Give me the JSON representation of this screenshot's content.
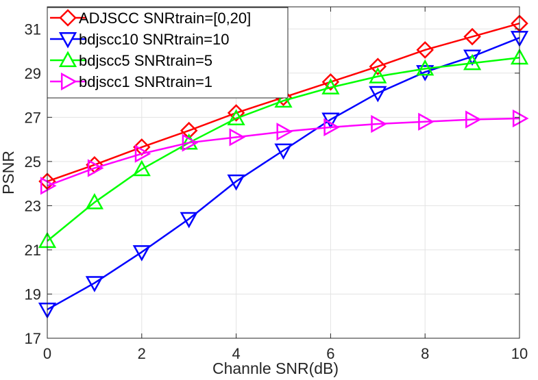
{
  "chart_data": {
    "type": "line",
    "title": "",
    "xlabel": "Channle SNR(dB)",
    "ylabel": "PSNR",
    "xlim": [
      0,
      10
    ],
    "ylim": [
      17,
      32
    ],
    "xticks": [
      0,
      2,
      4,
      6,
      8,
      10
    ],
    "yticks": [
      17,
      19,
      21,
      23,
      25,
      27,
      29,
      31
    ],
    "grid": true,
    "legend_position": "top-left",
    "x": [
      0,
      1,
      2,
      3,
      4,
      5,
      6,
      7,
      8,
      9,
      10
    ],
    "series": [
      {
        "name": "ADJSCC SNRtrain=[0,20]",
        "color": "#ff0000",
        "marker": "diamond",
        "values": [
          24.1,
          24.85,
          25.65,
          26.4,
          27.2,
          27.9,
          28.6,
          29.3,
          30.05,
          30.65,
          31.25
        ]
      },
      {
        "name": "bdjscc10 SNRtrain=10",
        "color": "#0000ff",
        "marker": "triangle-down",
        "values": [
          18.3,
          19.5,
          20.9,
          22.4,
          24.1,
          25.5,
          26.9,
          28.1,
          29.05,
          29.75,
          30.6
        ]
      },
      {
        "name": "bdjscc5 SNRtrain=5",
        "color": "#00ff00",
        "marker": "triangle-up",
        "values": [
          21.4,
          23.15,
          24.65,
          25.85,
          26.95,
          27.75,
          28.35,
          28.85,
          29.2,
          29.45,
          29.7
        ]
      },
      {
        "name": "bdjscc1 SNRtrain=1",
        "color": "#ff00ff",
        "marker": "triangle-right",
        "values": [
          23.9,
          24.7,
          25.35,
          25.85,
          26.1,
          26.35,
          26.55,
          26.7,
          26.8,
          26.9,
          26.95
        ]
      }
    ]
  }
}
